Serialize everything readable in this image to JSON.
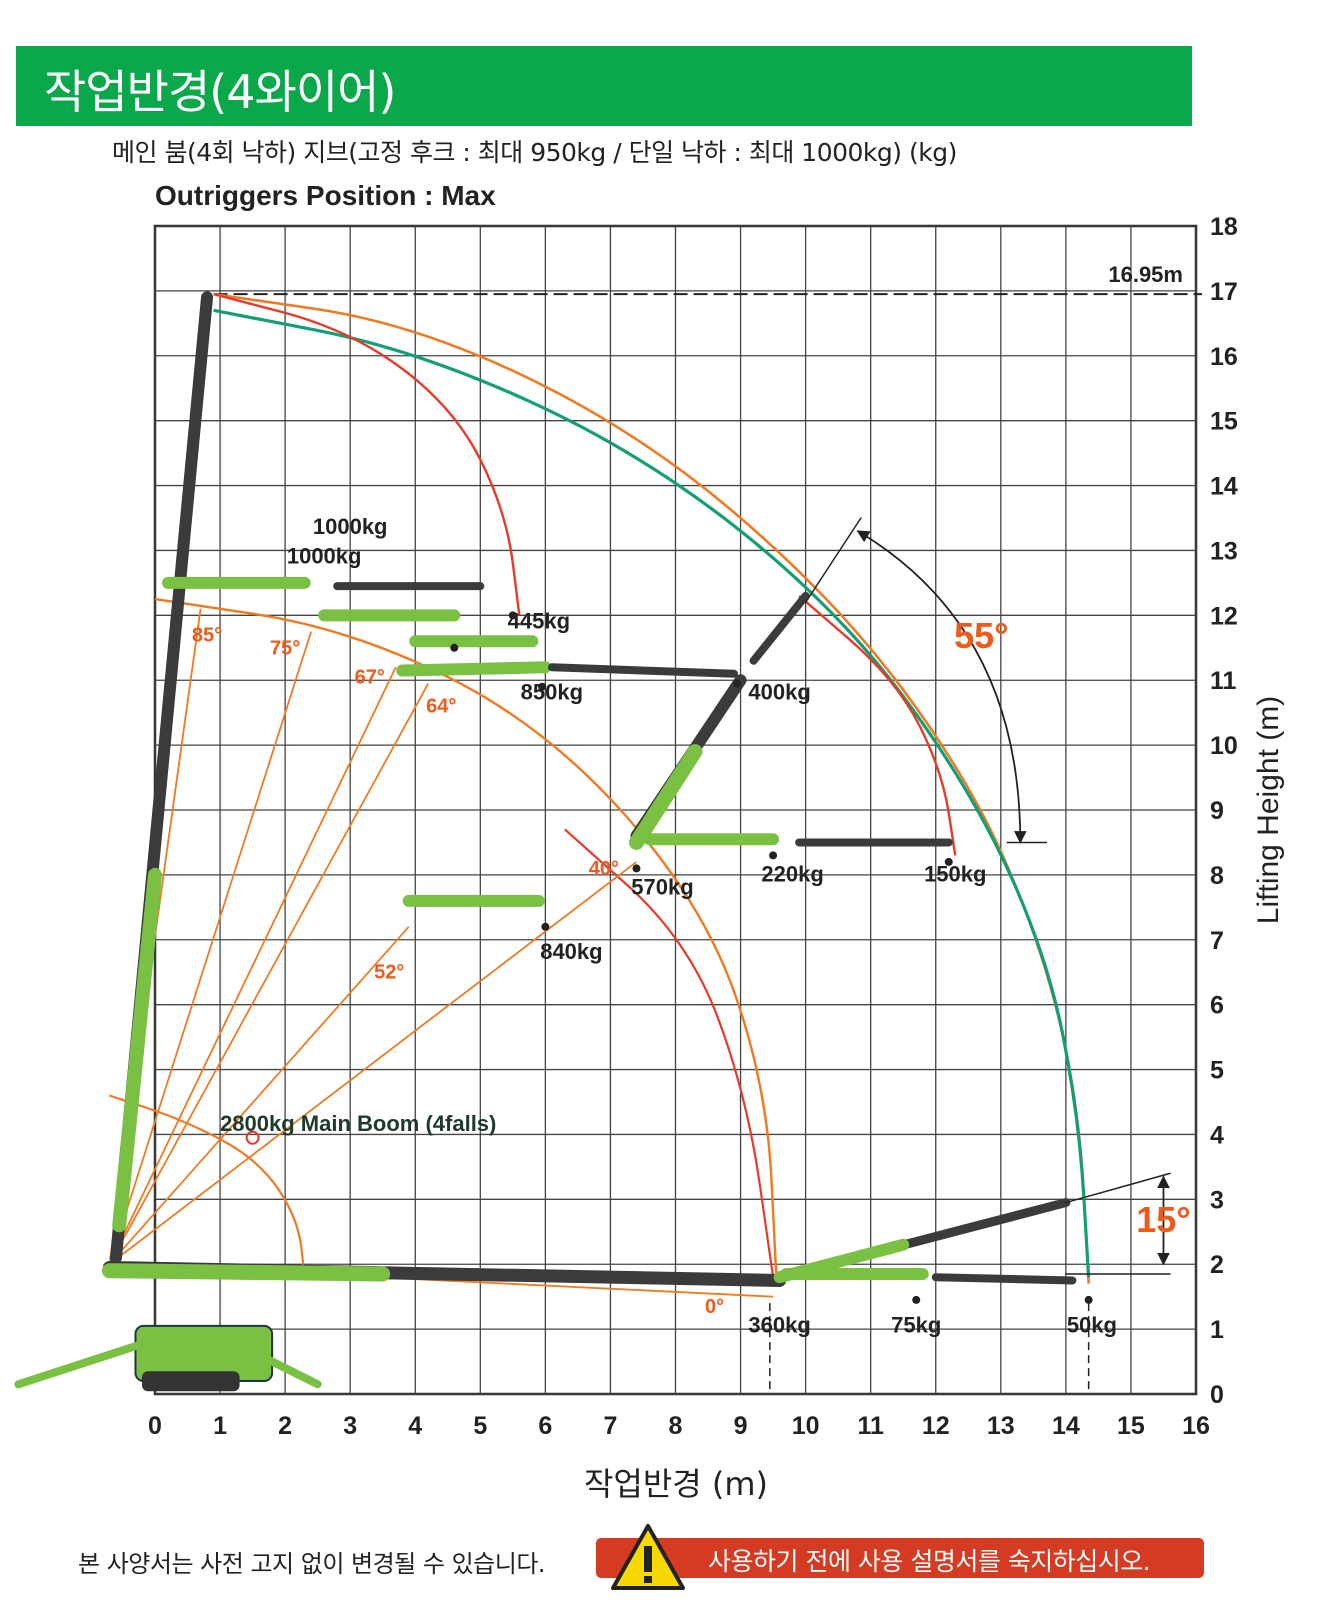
{
  "header": {
    "title": "작업반경(4와이어)"
  },
  "subtitle": "메인 붐(4회 낙하) 지브(고정 후크 : 최대 950kg / 단일 낙하 : 최대 1000kg) (kg)",
  "footer": {
    "note": "본 사양서는 사전 고지 없이 변경될 수 있습니다.",
    "warning": "사용하기 전에 사용 설명서를 숙지하십시오.",
    "warning_icon": "warning-triangle-icon"
  },
  "colors": {
    "brand_green": "#0aa74b",
    "boom_dark": "#3b3b3b",
    "crane_green": "#79c043",
    "orange_curve": "#f07a22",
    "red_curve": "#e63a2a",
    "teal_curve": "#129e76",
    "angle_orange": "#ee5a1a",
    "warning_red": "#d53a22"
  },
  "chart_data": {
    "type": "diagram",
    "title": "Outriggers Position : Max",
    "xlabel": "작업반경 (m)",
    "ylabel": "Lifting Height (m)",
    "xlim": [
      0,
      16
    ],
    "ylim": [
      0,
      18
    ],
    "x_ticks": [
      0,
      1,
      2,
      3,
      4,
      5,
      6,
      7,
      8,
      9,
      10,
      11,
      12,
      13,
      14,
      15,
      16
    ],
    "y_ticks": [
      0,
      1,
      2,
      3,
      4,
      5,
      6,
      7,
      8,
      9,
      10,
      11,
      12,
      13,
      14,
      15,
      16,
      17,
      18
    ],
    "grid": true,
    "max_height_label": "16.95m",
    "max_height": 16.95,
    "boom_pivot": [
      -0.7,
      2.0
    ],
    "main_boom_label": "2800kg Main Boom (4falls)",
    "load_labels": [
      {
        "text": "1000kg",
        "x": 2.6,
        "y": 12.8
      },
      {
        "text": "1000kg",
        "x": 3.0,
        "y": 13.25
      },
      {
        "text": "445kg",
        "x": 5.9,
        "y": 11.8
      },
      {
        "text": "850kg",
        "x": 6.1,
        "y": 10.7
      },
      {
        "text": "400kg",
        "x": 9.6,
        "y": 10.7
      },
      {
        "text": "570kg",
        "x": 7.8,
        "y": 7.7
      },
      {
        "text": "220kg",
        "x": 9.8,
        "y": 7.9
      },
      {
        "text": "150kg",
        "x": 12.3,
        "y": 7.9
      },
      {
        "text": "840kg",
        "x": 6.4,
        "y": 6.7
      },
      {
        "text": "360kg",
        "x": 9.6,
        "y": 0.95
      },
      {
        "text": "75kg",
        "x": 11.7,
        "y": 0.95
      },
      {
        "text": "50kg",
        "x": 14.4,
        "y": 0.95
      }
    ],
    "angles": [
      {
        "text": "85°",
        "x": 0.8,
        "y": 11.6
      },
      {
        "text": "75°",
        "x": 2.0,
        "y": 11.4
      },
      {
        "text": "67°",
        "x": 3.3,
        "y": 10.95
      },
      {
        "text": "64°",
        "x": 4.4,
        "y": 10.5
      },
      {
        "text": "40°",
        "x": 6.9,
        "y": 8.0
      },
      {
        "text": "52°",
        "x": 3.6,
        "y": 6.4
      },
      {
        "text": "0°",
        "x": 8.6,
        "y": 1.25
      }
    ],
    "big_angles": [
      {
        "text": "55°",
        "x": 12.7,
        "y": 11.5
      },
      {
        "text": "15°",
        "x": 15.5,
        "y": 2.5
      }
    ]
  }
}
